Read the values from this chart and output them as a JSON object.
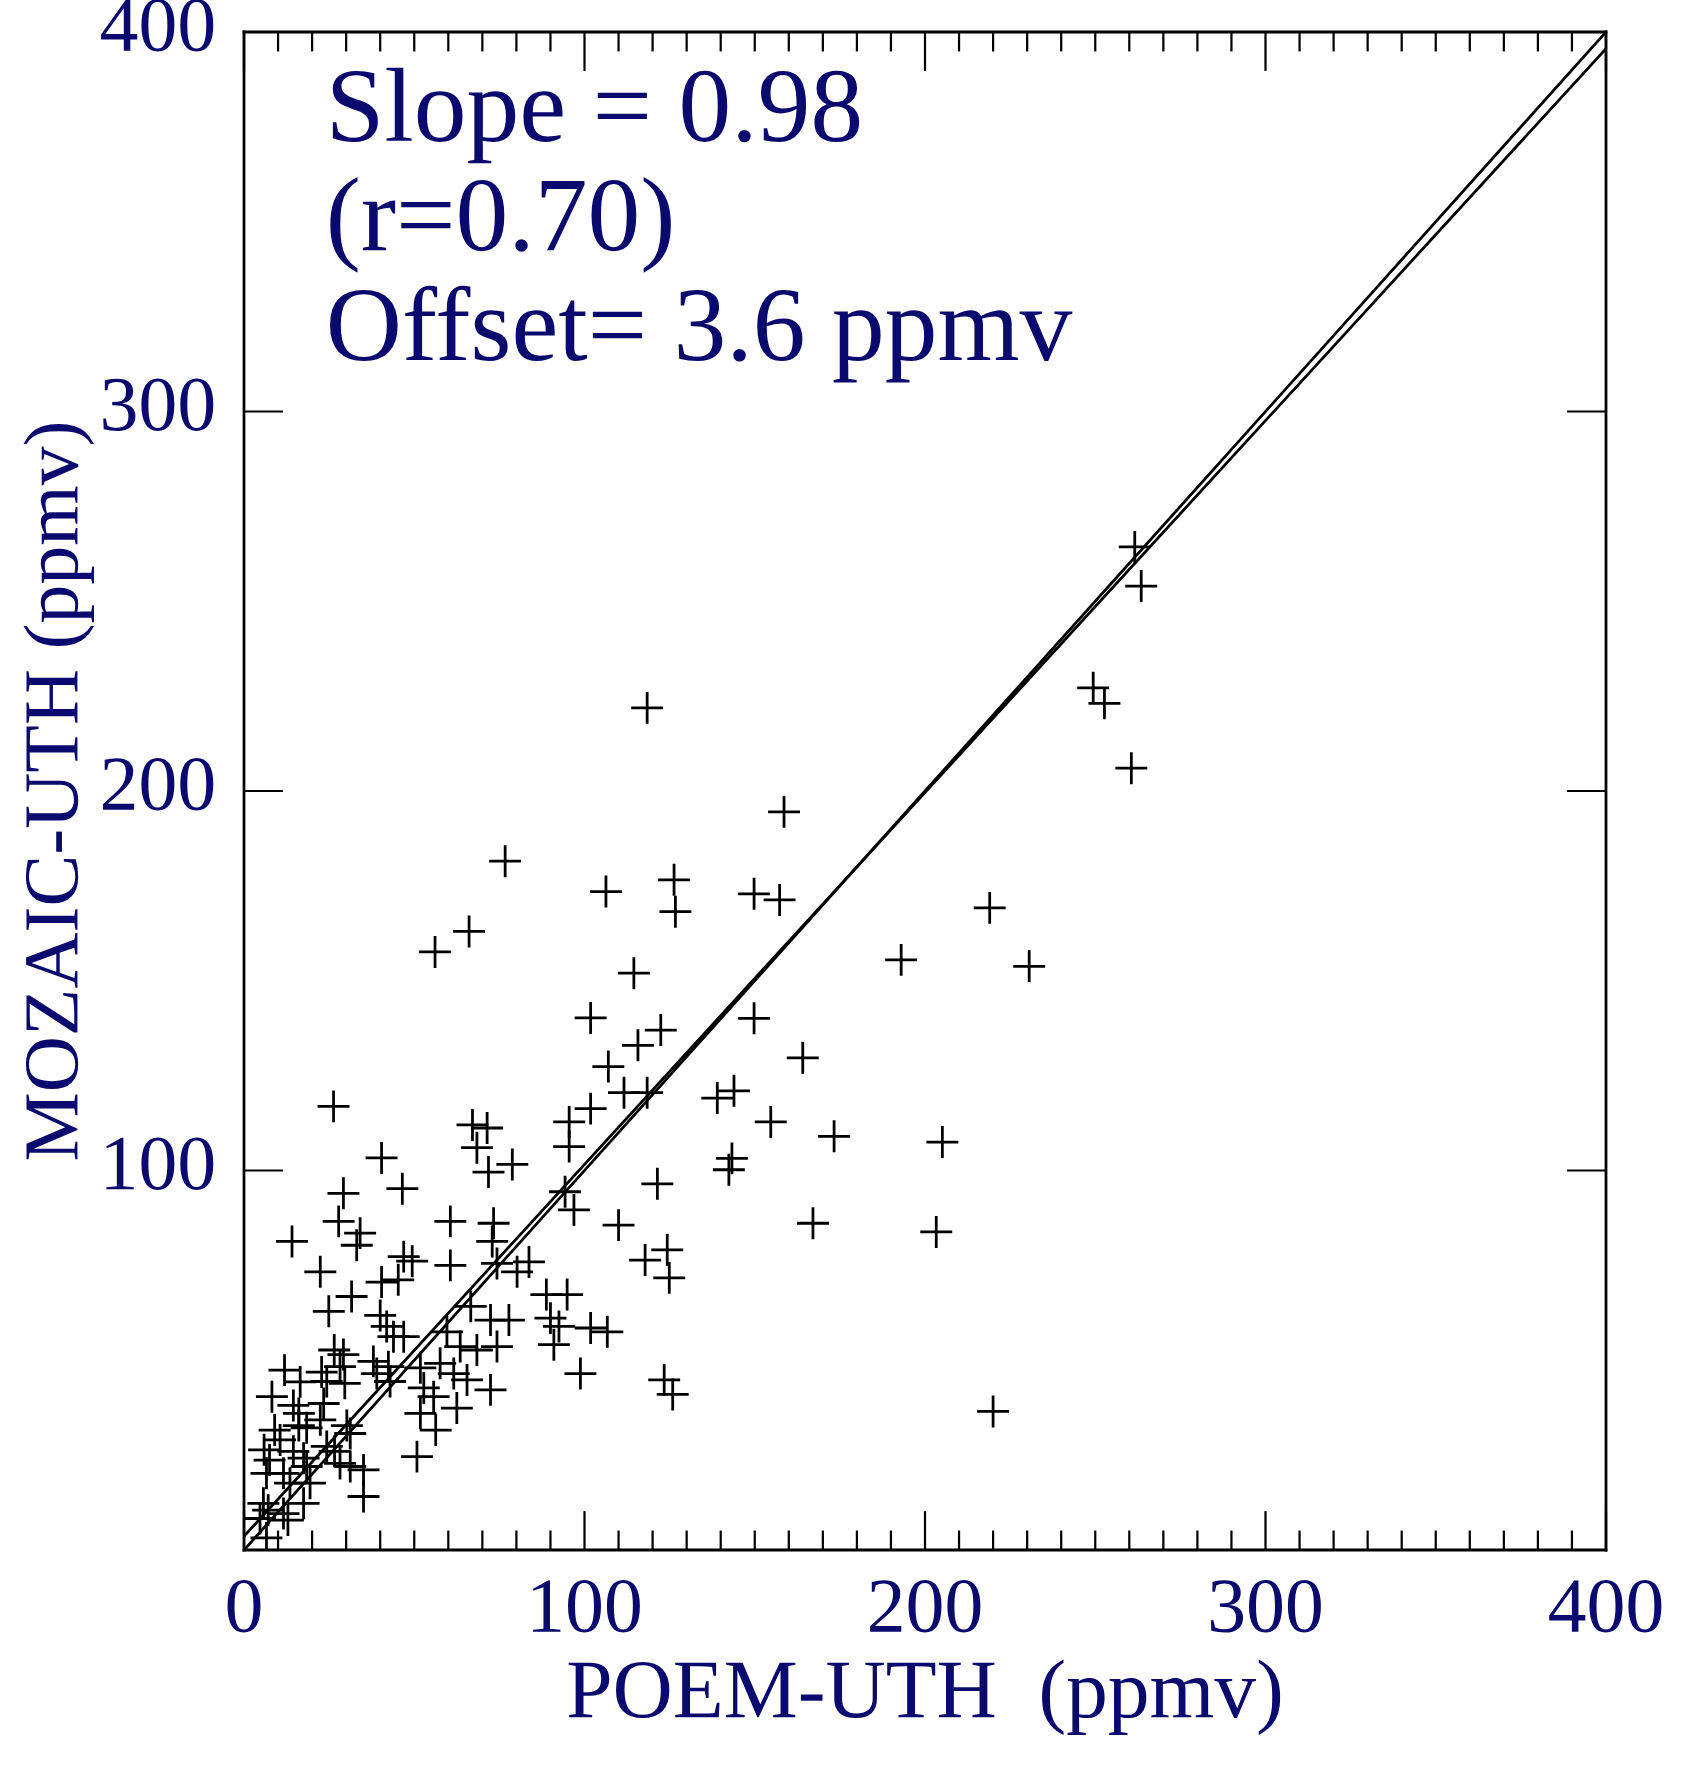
{
  "chart_data": {
    "type": "scatter",
    "xlabel": "POEM-UTH  (ppmv)",
    "ylabel": "MOZAIC-UTH (ppmv)",
    "xlim": [
      0,
      400
    ],
    "ylim": [
      0,
      400
    ],
    "xticks": [
      0,
      {
        "value": 10,
        "label": null
      },
      {
        "value": 20,
        "label": null
      },
      {
        "value": 30,
        "label": null
      },
      {
        "value": 40,
        "label": null
      },
      {
        "value": 50,
        "label": null
      },
      {
        "value": 60,
        "label": null
      },
      {
        "value": 70,
        "label": null
      },
      {
        "value": 80,
        "label": null
      },
      {
        "value": 90,
        "label": null
      },
      100,
      {
        "value": 110,
        "label": null
      },
      {
        "value": 120,
        "label": null
      },
      {
        "value": 130,
        "label": null
      },
      {
        "value": 140,
        "label": null
      },
      {
        "value": 150,
        "label": null
      },
      {
        "value": 160,
        "label": null
      },
      {
        "value": 170,
        "label": null
      },
      {
        "value": 180,
        "label": null
      },
      {
        "value": 190,
        "label": null
      },
      200,
      {
        "value": 210,
        "label": null
      },
      {
        "value": 220,
        "label": null
      },
      {
        "value": 230,
        "label": null
      },
      {
        "value": 240,
        "label": null
      },
      {
        "value": 250,
        "label": null
      },
      {
        "value": 260,
        "label": null
      },
      {
        "value": 270,
        "label": null
      },
      {
        "value": 280,
        "label": null
      },
      {
        "value": 290,
        "label": null
      },
      300,
      {
        "value": 310,
        "label": null
      },
      {
        "value": 320,
        "label": null
      },
      {
        "value": 330,
        "label": null
      },
      {
        "value": 340,
        "label": null
      },
      {
        "value": 350,
        "label": null
      },
      {
        "value": 360,
        "label": null
      },
      {
        "value": 370,
        "label": null
      },
      {
        "value": 380,
        "label": null
      },
      {
        "value": 390,
        "label": null
      },
      400
    ],
    "yticks": [
      100,
      200,
      300,
      400
    ],
    "marker": "cross",
    "grid": false,
    "legend": false,
    "annotations": [
      "Slope = 0.98",
      "(r=0.70)",
      "Offset= 3.6 ppmv"
    ],
    "series": [
      {
        "type": "scatter",
        "color": "#000000",
        "x": [
          261.6,
          263.5,
          249.4,
          252.7,
          260.6,
          219,
          193,
          230.6,
          205.1,
          203.3,
          220,
          118.4,
          158.6,
          106.3,
          126.3,
          126.7,
          149.8,
          157.3,
          114.5,
          122.4,
          115.7,
          107,
          149.8,
          164.1,
          111.6,
          118.4,
          139,
          143.9,
          154.7,
          173.3,
          143.3,
          142.4,
          121.4,
          110,
          167.1,
          117.8,
          124.3,
          124.9,
          106.7,
          123.4,
          125.9,
          76.7,
          56.1,
          66.1,
          101.8,
          26.3,
          101.8,
          95.5,
          67.1,
          71.4,
          68.4,
          95.5,
          40.4,
          71.8,
          78.8,
          29.2,
          46.5,
          94.3,
          96.9,
          27.8,
          34.1,
          33.1,
          60.6,
          73.3,
          14.1,
          72.9,
          46.9,
          49.4,
          22.4,
          60.6,
          74.3,
          80.2,
          83.7,
          40.4,
          45.3,
          31.6,
          66.6,
          88.8,
          94.9,
          24.9,
          40,
          41.9,
          43.9,
          72.4,
          77.8,
          90,
          92.5,
          91,
          101.8,
          46.9,
          59.6,
          63.5,
          68.4,
          74.3,
          26.5,
          29.2,
          38,
          22.8,
          28.2,
          24.3,
          29.6,
          42.4,
          42.9,
          39,
          11.9,
          16.5,
          51.8,
          57.6,
          61.6,
          52.8,
          55.7,
          65.5,
          72.4,
          98.8,
          8.2,
          14.5,
          16.1,
          16.1,
          18.4,
          22.4,
          23.4,
          30.2,
          31.2,
          51.8,
          56.3,
          62.5,
          9,
          10.6,
          5.9,
          7.5,
          14.5,
          17.5,
          18.4,
          24.3,
          26.6,
          28.2,
          35.1,
          31.2,
          50.8,
          6.6,
          11.6,
          13.5,
          19.4,
          35.1,
          17.5,
          5.7,
          7.1,
          4.7,
          11.6,
          12.9,
          6.6
        ],
        "values": [
          264.3,
          254,
          227.2,
          223.1,
          206,
          169.2,
          155.5,
          153.8,
          107.5,
          83.8,
          36.5,
          221.9,
          194.5,
          173.5,
          176.6,
          168.2,
          172.9,
          171.3,
          152,
          137,
          133,
          127.4,
          140.1,
          129.7,
          120.5,
          120.5,
          119.1,
          121,
          112.8,
          109,
          103.2,
          100.2,
          96.5,
          85.6,
          86.1,
          76.4,
          79.1,
          71.7,
          57.5,
          44.8,
          41,
          181.5,
          157.6,
          163,
          140.2,
          116.9,
          116.3,
          112.8,
          112,
          111.2,
          106,
          106.3,
          103.3,
          99.6,
          101.6,
          94,
          95.2,
          94.4,
          89.6,
          86.6,
          83.5,
          80.3,
          86.6,
          86.1,
          81.3,
          81.3,
          77.3,
          76.1,
          73.3,
          75,
          75.5,
          73.3,
          75.9,
          70.6,
          71.2,
          66.8,
          64.2,
          67.3,
          67.3,
          62.9,
          61.8,
          58.9,
          56.2,
          60.6,
          60.6,
          61.1,
          58.9,
          54.1,
          58.5,
          56.2,
          57.5,
          53.6,
          52.7,
          53.6,
          52.7,
          51.5,
          49.7,
          46.9,
          48.3,
          44.4,
          43.9,
          48.3,
          44.4,
          46.5,
          47.4,
          44.3,
          48,
          49.2,
          46.5,
          42.7,
          40.4,
          44.8,
          42.2,
          46.5,
          40.4,
          38.1,
          36,
          32.8,
          32.2,
          34.3,
          38.6,
          32.8,
          30.7,
          36,
          31.6,
          37.4,
          31.6,
          29,
          26.4,
          23.7,
          26,
          24.2,
          22,
          27.3,
          26,
          22.8,
          21.1,
          22,
          24.6,
          20.2,
          20.2,
          17.6,
          17.6,
          14.1,
          12.3,
          12.3,
          10.5,
          8.3,
          9.6,
          7.9,
          3.2
        ]
      },
      {
        "type": "line",
        "color": "#000000",
        "marker": "none",
        "x": [
          0,
          400
        ],
        "values": [
          0,
          400
        ]
      },
      {
        "type": "line",
        "color": "#000000",
        "marker": "none",
        "x": [
          0,
          400
        ],
        "values": [
          3.6,
          395.6
        ]
      }
    ]
  }
}
